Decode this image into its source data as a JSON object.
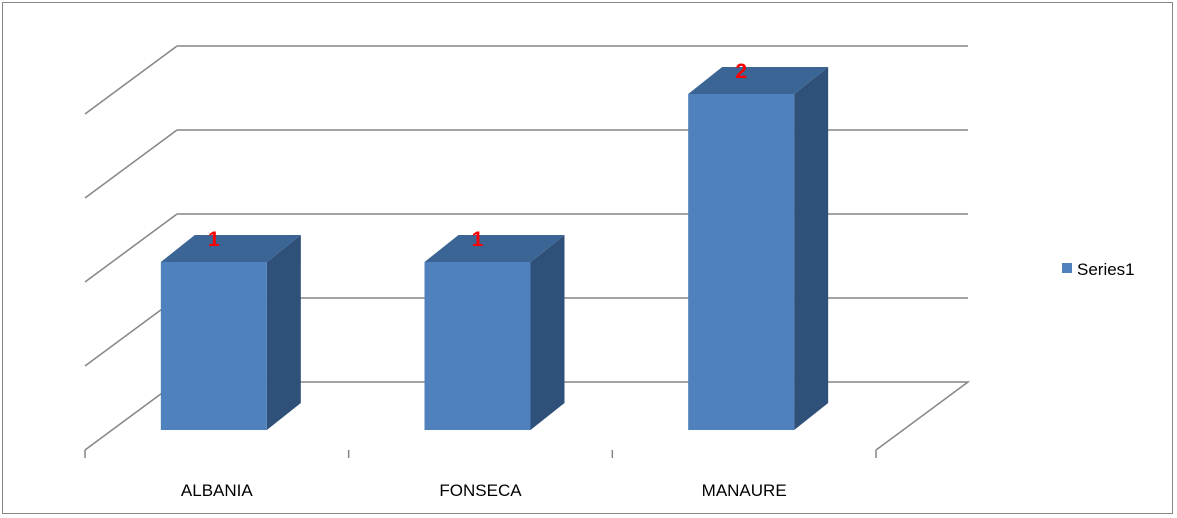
{
  "chart_data": {
    "type": "bar",
    "categories": [
      "ALBANIA",
      "FONSECA",
      "MANAURE"
    ],
    "series": [
      {
        "name": "Series1",
        "values": [
          1,
          1,
          2
        ]
      }
    ],
    "data_labels": [
      "1",
      "1",
      "2"
    ],
    "ylim": [
      0,
      3.5
    ],
    "grid": true,
    "legend_position": "right",
    "colors": {
      "bar_front": "#4f81bd",
      "bar_top": "#3b6595",
      "bar_side": "#2f5079",
      "gridline": "#868686",
      "data_label": "#ff0000"
    }
  }
}
